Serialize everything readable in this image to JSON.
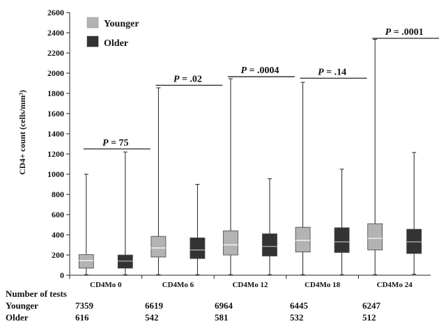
{
  "chart_data": {
    "type": "boxplot",
    "ylabel": "CD4+ count (cells/mm³)",
    "ylim": [
      0,
      2600
    ],
    "yticks": [
      0,
      200,
      400,
      600,
      800,
      1000,
      1200,
      1400,
      1600,
      1800,
      2000,
      2200,
      2400,
      2600
    ],
    "categories": [
      "CD4Mo 0",
      "CD4Mo 6",
      "CD4Mo 12",
      "CD4Mo 18",
      "CD4Mo 24"
    ],
    "legend": [
      {
        "name": "Younger",
        "color": "#b3b3b3"
      },
      {
        "name": "Older",
        "color": "#333333"
      }
    ],
    "series": [
      {
        "name": "Younger",
        "color": "#b3b3b3",
        "boxes": [
          {
            "min": 5,
            "q1": 70,
            "median": 145,
            "q3": 205,
            "max": 1000
          },
          {
            "min": 5,
            "q1": 180,
            "median": 270,
            "q3": 385,
            "max": 1855
          },
          {
            "min": 5,
            "q1": 200,
            "median": 300,
            "q3": 440,
            "max": 1945
          },
          {
            "min": 5,
            "q1": 230,
            "median": 345,
            "q3": 475,
            "max": 1910
          },
          {
            "min": 5,
            "q1": 250,
            "median": 365,
            "q3": 510,
            "max": 2335
          }
        ]
      },
      {
        "name": "Older",
        "color": "#333333",
        "boxes": [
          {
            "min": 5,
            "q1": 70,
            "median": 140,
            "q3": 200,
            "max": 1220
          },
          {
            "min": 5,
            "q1": 165,
            "median": 250,
            "q3": 370,
            "max": 900
          },
          {
            "min": 5,
            "q1": 190,
            "median": 285,
            "q3": 410,
            "max": 955
          },
          {
            "min": 5,
            "q1": 225,
            "median": 330,
            "q3": 470,
            "max": 1050
          },
          {
            "min": 10,
            "q1": 215,
            "median": 330,
            "q3": 455,
            "max": 1215
          }
        ]
      }
    ],
    "annotations": [
      {
        "p_prefix": "P",
        "p_value": " = 75",
        "category": 0,
        "y": 1250
      },
      {
        "p_prefix": "P",
        "p_value": " = .02",
        "category": 1,
        "y": 1880
      },
      {
        "p_prefix": "P",
        "p_value": " = .0004",
        "category": 2,
        "y": 1965
      },
      {
        "p_prefix": "P",
        "p_value": " = .14",
        "category": 3,
        "y": 1950
      },
      {
        "p_prefix": "P",
        "p_value": " = .0001",
        "category": 4,
        "y": 2345
      }
    ],
    "tests_table": {
      "title": "Number of tests",
      "rows": [
        {
          "label": "Younger",
          "values": [
            "7359",
            "6619",
            "6964",
            "6445",
            "6247"
          ]
        },
        {
          "label": "Older",
          "values": [
            "616",
            "542",
            "581",
            "532",
            "512"
          ]
        }
      ]
    }
  }
}
